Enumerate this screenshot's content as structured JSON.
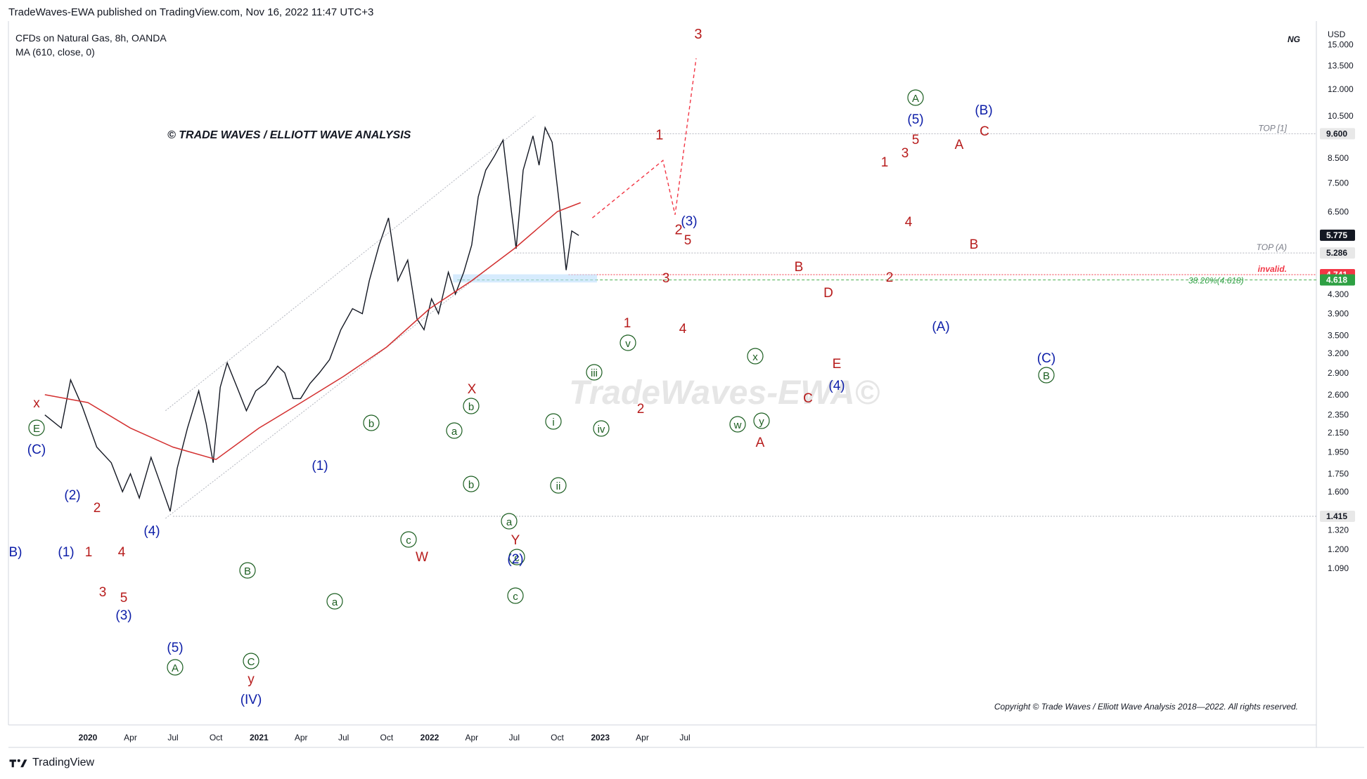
{
  "publisher_line": "TradeWaves-EWA published on TradingView.com, Nov 16, 2022 11:47 UTC+3",
  "header": {
    "symbol_line": "CFDs on Natural Gas, 8h, OANDA",
    "indicator_line": "MA (610, close, 0)"
  },
  "watermark_title": "© TRADE WAVES / ELLIOTT WAVE ANALYSIS",
  "watermark_center": "TradeWaves-EWA©",
  "copyright": "Copyright © Trade Waves / Elliott Wave Analysis 2018—2022. All rights reserved.",
  "footer_brand": "TradingView",
  "corner_symbol": "NG",
  "chart_data": {
    "type": "line",
    "title": "CFDs on Natural Gas, 8h, OANDA",
    "yscale": "log",
    "currency": "USD",
    "y_ticks": [
      "15.000",
      "13.500",
      "12.000",
      "10.500",
      "8.500",
      "7.500",
      "6.500",
      "5.286",
      "4.300",
      "3.900",
      "3.500",
      "3.200",
      "2.900",
      "2.600",
      "2.350",
      "2.150",
      "1.950",
      "1.750",
      "1.600",
      "1.320",
      "1.200",
      "1.090"
    ],
    "x_ticks": [
      "2020",
      "Apr",
      "Jul",
      "Oct",
      "2021",
      "Apr",
      "Jul",
      "Oct",
      "2022",
      "Apr",
      "Jul",
      "Oct",
      "2023",
      "Apr",
      "Jul"
    ],
    "price_badges": [
      {
        "label": "9.600",
        "color": "#e8e8e8",
        "text_color": "#131722"
      },
      {
        "label": "5.775",
        "color": "#131722",
        "text_color": "#ffffff"
      },
      {
        "label": "5.286",
        "color": "#e8e8e8",
        "text_color": "#131722"
      },
      {
        "label": "4.741",
        "color": "#f23645",
        "text_color": "#ffffff"
      },
      {
        "label": "4.618",
        "color": "#2ea043",
        "text_color": "#ffffff"
      },
      {
        "label": "1.415",
        "color": "#e8e8e8",
        "text_color": "#131722"
      }
    ],
    "levels": [
      {
        "label": "TOP [1]",
        "value": 9.6
      },
      {
        "label": "TOP (A)",
        "value": 5.286
      },
      {
        "label": "invalid.",
        "value": 4.741
      },
      {
        "label": "38.20%(4.618)",
        "value": 4.618
      },
      {
        "label": "",
        "value": 1.415
      }
    ],
    "series": [
      {
        "name": "NG price",
        "x": [
          "2019-10-01",
          "2019-11-05",
          "2019-11-25",
          "2019-12-20",
          "2020-01-20",
          "2020-02-20",
          "2020-03-15",
          "2020-04-01",
          "2020-04-20",
          "2020-05-15",
          "2020-06-01",
          "2020-06-25",
          "2020-07-10",
          "2020-08-01",
          "2020-08-25",
          "2020-09-10",
          "2020-09-25",
          "2020-10-10",
          "2020-10-25",
          "2020-11-15",
          "2020-12-05",
          "2020-12-25",
          "2021-01-15",
          "2021-02-10",
          "2021-02-25",
          "2021-03-15",
          "2021-03-31",
          "2021-04-20",
          "2021-05-10",
          "2021-06-01",
          "2021-06-25",
          "2021-07-20",
          "2021-08-10",
          "2021-08-25",
          "2021-09-15",
          "2021-10-05",
          "2021-10-25",
          "2021-11-15",
          "2021-12-05",
          "2021-12-20",
          "2022-01-05",
          "2022-01-20",
          "2022-02-10",
          "2022-02-25",
          "2022-03-15",
          "2022-04-01",
          "2022-04-15",
          "2022-05-01",
          "2022-05-20",
          "2022-06-07",
          "2022-06-25",
          "2022-07-05",
          "2022-07-20",
          "2022-08-10",
          "2022-08-23",
          "2022-09-05",
          "2022-09-20",
          "2022-10-05",
          "2022-10-20",
          "2022-11-01",
          "2022-11-16"
        ],
        "y": [
          2.35,
          2.2,
          2.8,
          2.45,
          2.0,
          1.85,
          1.6,
          1.75,
          1.55,
          1.9,
          1.7,
          1.45,
          1.8,
          2.2,
          2.65,
          2.25,
          1.85,
          2.7,
          3.05,
          2.7,
          2.4,
          2.65,
          2.75,
          3.0,
          2.9,
          2.55,
          2.55,
          2.75,
          2.9,
          3.1,
          3.6,
          4.0,
          3.9,
          4.6,
          5.5,
          6.3,
          4.6,
          5.1,
          3.8,
          3.6,
          4.2,
          3.9,
          4.8,
          4.3,
          4.8,
          5.5,
          7.0,
          8.0,
          8.6,
          9.3,
          6.5,
          5.4,
          8.0,
          9.5,
          8.2,
          9.9,
          9.2,
          6.8,
          4.85,
          5.9,
          5.77
        ]
      },
      {
        "name": "MA (610, close, 0)",
        "x": [
          "2019-10-01",
          "2020-01-01",
          "2020-04-01",
          "2020-07-01",
          "2020-10-01",
          "2021-01-01",
          "2021-04-01",
          "2021-07-01",
          "2021-10-01",
          "2022-01-01",
          "2022-04-01",
          "2022-07-01",
          "2022-10-01",
          "2022-11-20"
        ],
        "y": [
          2.6,
          2.5,
          2.2,
          2.0,
          1.88,
          2.2,
          2.5,
          2.85,
          3.3,
          4.0,
          4.6,
          5.4,
          6.5,
          6.8
        ]
      }
    ],
    "projection": {
      "labels": [
        "1",
        "2",
        "3"
      ],
      "x": [
        "2022-12-15",
        "2023-05-15",
        "2023-06-10",
        "2023-07-25"
      ],
      "y": [
        6.3,
        8.4,
        6.4,
        14.0
      ]
    },
    "wave_labels": [
      {
        "text": "x",
        "color": "#b71c1c",
        "circle": false
      },
      {
        "text": "E",
        "color": "#1b5e20",
        "circle": true
      },
      {
        "text": "(C)",
        "color": "#0d1ea8",
        "circle": false
      },
      {
        "text": "(2)",
        "color": "#0d1ea8",
        "circle": false
      },
      {
        "text": "2",
        "color": "#b71c1c",
        "circle": false
      },
      {
        "text": "B)",
        "color": "#0d1ea8",
        "circle": false
      },
      {
        "text": "(1)",
        "color": "#0d1ea8",
        "circle": false
      },
      {
        "text": "1",
        "color": "#b71c1c",
        "circle": false
      },
      {
        "text": "4",
        "color": "#b71c1c",
        "circle": false
      },
      {
        "text": "(4)",
        "color": "#0d1ea8",
        "circle": false
      },
      {
        "text": "3",
        "color": "#b71c1c",
        "circle": false
      },
      {
        "text": "5",
        "color": "#b71c1c",
        "circle": false
      },
      {
        "text": "(3)",
        "color": "#0d1ea8",
        "circle": false
      },
      {
        "text": "(5)",
        "color": "#0d1ea8",
        "circle": false
      },
      {
        "text": "A",
        "color": "#1b5e20",
        "circle": true
      },
      {
        "text": "B",
        "color": "#1b5e20",
        "circle": true
      },
      {
        "text": "C",
        "color": "#1b5e20",
        "circle": true
      },
      {
        "text": "y",
        "color": "#b71c1c",
        "circle": false
      },
      {
        "text": "(IV)",
        "color": "#0d1ea8",
        "circle": false
      },
      {
        "text": "a",
        "color": "#1b5e20",
        "circle": true
      },
      {
        "text": "(1)",
        "color": "#0d1ea8",
        "circle": false
      },
      {
        "text": "b",
        "color": "#1b5e20",
        "circle": true
      },
      {
        "text": "c",
        "color": "#1b5e20",
        "circle": true
      },
      {
        "text": "W",
        "color": "#b71c1c",
        "circle": false
      },
      {
        "text": "a",
        "color": "#1b5e20",
        "circle": true
      },
      {
        "text": "b",
        "color": "#1b5e20",
        "circle": true
      },
      {
        "text": "c",
        "color": "#1b5e20",
        "circle": true
      },
      {
        "text": "X",
        "color": "#b71c1c",
        "circle": false
      },
      {
        "text": "a",
        "color": "#1b5e20",
        "circle": true
      },
      {
        "text": "b",
        "color": "#1b5e20",
        "circle": true
      },
      {
        "text": "c",
        "color": "#1b5e20",
        "circle": true
      },
      {
        "text": "Y",
        "color": "#b71c1c",
        "circle": false
      },
      {
        "text": "(2)",
        "color": "#0d1ea8",
        "circle": false
      },
      {
        "text": "i",
        "color": "#1b5e20",
        "circle": true
      },
      {
        "text": "ii",
        "color": "#1b5e20",
        "circle": true
      },
      {
        "text": "iii",
        "color": "#1b5e20",
        "circle": true
      },
      {
        "text": "iv",
        "color": "#1b5e20",
        "circle": true
      },
      {
        "text": "v",
        "color": "#1b5e20",
        "circle": true
      },
      {
        "text": "1",
        "color": "#b71c1c",
        "circle": false
      },
      {
        "text": "2",
        "color": "#b71c1c",
        "circle": false
      },
      {
        "text": "3",
        "color": "#b71c1c",
        "circle": false
      },
      {
        "text": "4",
        "color": "#b71c1c",
        "circle": false
      },
      {
        "text": "5",
        "color": "#b71c1c",
        "circle": false
      },
      {
        "text": "(3)",
        "color": "#0d1ea8",
        "circle": false
      },
      {
        "text": "w",
        "color": "#1b5e20",
        "circle": true
      },
      {
        "text": "x",
        "color": "#1b5e20",
        "circle": true
      },
      {
        "text": "y",
        "color": "#1b5e20",
        "circle": true
      },
      {
        "text": "A",
        "color": "#b71c1c",
        "circle": false
      },
      {
        "text": "B",
        "color": "#b71c1c",
        "circle": false
      },
      {
        "text": "C",
        "color": "#b71c1c",
        "circle": false
      },
      {
        "text": "D",
        "color": "#b71c1c",
        "circle": false
      },
      {
        "text": "E",
        "color": "#b71c1c",
        "circle": false
      },
      {
        "text": "(4)",
        "color": "#0d1ea8",
        "circle": false
      },
      {
        "text": "1",
        "color": "#b71c1c",
        "circle": false
      },
      {
        "text": "2",
        "color": "#b71c1c",
        "circle": false
      },
      {
        "text": "3",
        "color": "#b71c1c",
        "circle": false
      },
      {
        "text": "4",
        "color": "#b71c1c",
        "circle": false
      },
      {
        "text": "5",
        "color": "#b71c1c",
        "circle": false
      },
      {
        "text": "(5)",
        "color": "#0d1ea8",
        "circle": false
      },
      {
        "text": "A",
        "color": "#1b5e20",
        "circle": true
      },
      {
        "text": "(A)",
        "color": "#0d1ea8",
        "circle": false
      },
      {
        "text": "A",
        "color": "#b71c1c",
        "circle": false
      },
      {
        "text": "B",
        "color": "#b71c1c",
        "circle": false
      },
      {
        "text": "C",
        "color": "#b71c1c",
        "circle": false
      },
      {
        "text": "(B)",
        "color": "#0d1ea8",
        "circle": false
      },
      {
        "text": "(C)",
        "color": "#0d1ea8",
        "circle": false
      },
      {
        "text": "B",
        "color": "#1b5e20",
        "circle": true
      }
    ]
  }
}
